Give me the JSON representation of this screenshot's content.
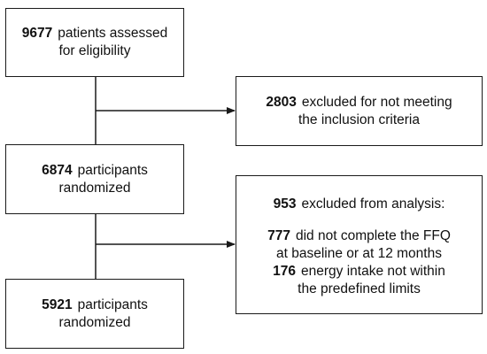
{
  "flow": {
    "assessed": {
      "number": "9677",
      "line1": "patients assessed",
      "line2": "for eligibility"
    },
    "excluded_criteria": {
      "number": "2803",
      "line1": "excluded for not meeting",
      "line2": "the inclusion criteria"
    },
    "randomized": {
      "number": "6874",
      "line1": "participants",
      "line2": "randomized"
    },
    "excluded_analysis": {
      "number": "953",
      "heading": "excluded from analysis:",
      "reasons": [
        {
          "number": "777",
          "line1": "did not complete the FFQ",
          "line2": "at baseline or at 12 months"
        },
        {
          "number": "176",
          "line1": "energy intake not within",
          "line2": "the predefined limits"
        }
      ]
    },
    "final": {
      "number": "5921",
      "line1": "participants",
      "line2": "randomized"
    }
  },
  "colors": {
    "border": "#1a1a1a",
    "line": "#1a1a1a",
    "text": "#111111",
    "background": "#ffffff"
  }
}
